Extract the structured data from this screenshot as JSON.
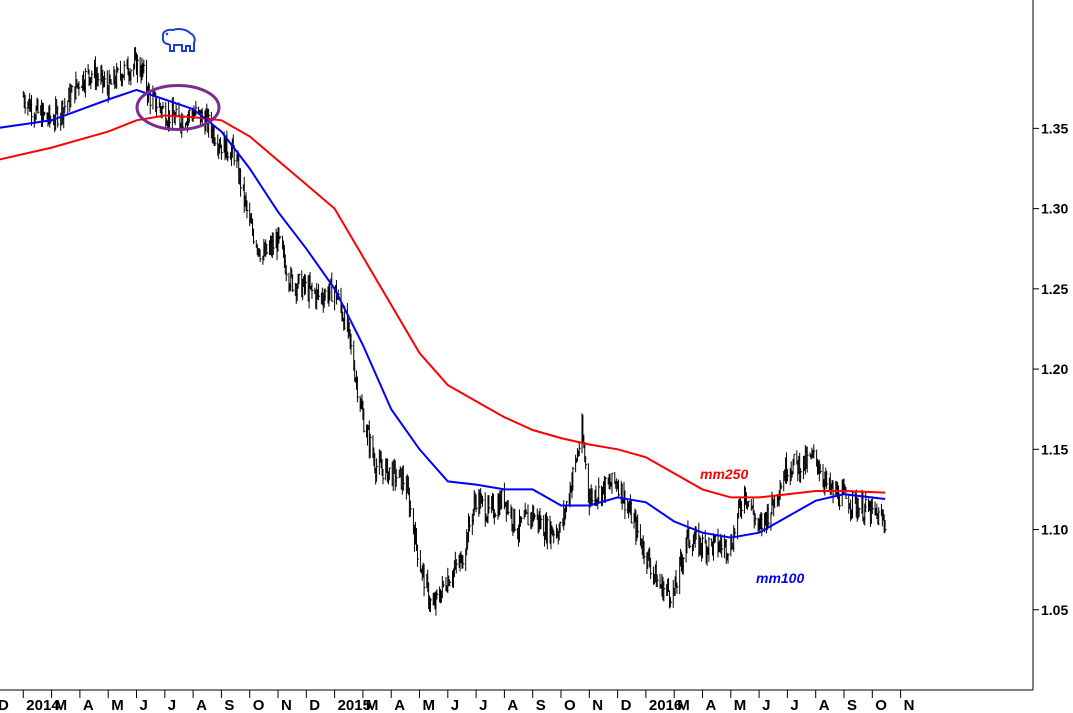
{
  "chart_data": {
    "type": "line",
    "title": "",
    "xlabel": "",
    "ylabel": "",
    "ylim": [
      1.0,
      1.43
    ],
    "y_ticks": [
      1.05,
      1.1,
      1.15,
      1.2,
      1.25,
      1.3,
      1.35
    ],
    "y_tick_labels": [
      "1.05",
      "1.10",
      "1.15",
      "1.20",
      "1.25",
      "1.30",
      "1.35"
    ],
    "x_range": [
      "2013-12-01",
      "2016-12-31"
    ],
    "x_tick_labels": [
      "D",
      "2014",
      "M",
      "A",
      "M",
      "J",
      "J",
      "A",
      "S",
      "O",
      "N",
      "D",
      "2015",
      "M",
      "A",
      "M",
      "J",
      "J",
      "A",
      "S",
      "O",
      "N",
      "D",
      "2016",
      "M",
      "A",
      "M",
      "J",
      "J",
      "A",
      "S",
      "O",
      "N"
    ],
    "price_series": {
      "name": "",
      "color": "#000000",
      "x": [
        "2014-01-01",
        "2014-01-15",
        "2014-02-01",
        "2014-02-15",
        "2014-03-01",
        "2014-03-15",
        "2014-04-01",
        "2014-04-15",
        "2014-05-01",
        "2014-05-08",
        "2014-05-15",
        "2014-06-01",
        "2014-06-15",
        "2014-07-01",
        "2014-07-15",
        "2014-08-01",
        "2014-08-15",
        "2014-09-01",
        "2014-09-15",
        "2014-10-01",
        "2014-10-15",
        "2014-11-01",
        "2014-11-15",
        "2014-12-01",
        "2014-12-15",
        "2015-01-01",
        "2015-01-15",
        "2015-02-01",
        "2015-02-15",
        "2015-03-01",
        "2015-03-15",
        "2015-04-01",
        "2015-04-15",
        "2015-05-01",
        "2015-05-15",
        "2015-06-01",
        "2015-06-15",
        "2015-07-01",
        "2015-07-15",
        "2015-08-01",
        "2015-08-24",
        "2015-09-01",
        "2015-09-15",
        "2015-10-01",
        "2015-10-15",
        "2015-11-01",
        "2015-11-15",
        "2015-12-01",
        "2015-12-15",
        "2016-01-01",
        "2016-01-15",
        "2016-02-01",
        "2016-02-15",
        "2016-03-01",
        "2016-03-15",
        "2016-04-01",
        "2016-04-15",
        "2016-05-01",
        "2016-05-15",
        "2016-06-01",
        "2016-06-15",
        "2016-07-01",
        "2016-07-15"
      ],
      "values": [
        1.37,
        1.36,
        1.355,
        1.365,
        1.38,
        1.385,
        1.375,
        1.385,
        1.39,
        1.385,
        1.37,
        1.36,
        1.355,
        1.36,
        1.355,
        1.34,
        1.335,
        1.29,
        1.27,
        1.28,
        1.255,
        1.25,
        1.245,
        1.25,
        1.225,
        1.17,
        1.14,
        1.135,
        1.13,
        1.08,
        1.05,
        1.07,
        1.08,
        1.12,
        1.11,
        1.12,
        1.1,
        1.11,
        1.1,
        1.1,
        1.16,
        1.12,
        1.125,
        1.13,
        1.11,
        1.085,
        1.065,
        1.06,
        1.095,
        1.09,
        1.09,
        1.09,
        1.125,
        1.1,
        1.115,
        1.14,
        1.14,
        1.145,
        1.125,
        1.12,
        1.115,
        1.11,
        1.105
      ]
    },
    "series": [
      {
        "name": "mm100",
        "color": "#0000ff",
        "x": [
          "2013-12-01",
          "2014-02-01",
          "2014-04-01",
          "2014-05-01",
          "2014-06-01",
          "2014-07-01",
          "2014-08-01",
          "2014-09-01",
          "2014-10-01",
          "2014-11-01",
          "2014-12-01",
          "2015-01-01",
          "2015-02-01",
          "2015-03-01",
          "2015-04-01",
          "2015-05-01",
          "2015-06-01",
          "2015-07-01",
          "2015-08-01",
          "2015-09-01",
          "2015-10-01",
          "2015-11-01",
          "2015-12-01",
          "2016-01-01",
          "2016-02-01",
          "2016-03-01",
          "2016-04-01",
          "2016-05-01",
          "2016-06-01",
          "2016-07-15"
        ],
        "values": [
          1.35,
          1.355,
          1.368,
          1.374,
          1.368,
          1.362,
          1.348,
          1.325,
          1.298,
          1.275,
          1.25,
          1.215,
          1.175,
          1.15,
          1.13,
          1.128,
          1.125,
          1.125,
          1.115,
          1.115,
          1.12,
          1.117,
          1.105,
          1.098,
          1.095,
          1.098,
          1.108,
          1.118,
          1.122,
          1.119
        ]
      },
      {
        "name": "mm250",
        "color": "#ff0000",
        "x": [
          "2013-12-01",
          "2014-02-01",
          "2014-04-01",
          "2014-05-01",
          "2014-06-01",
          "2014-07-01",
          "2014-08-01",
          "2014-09-01",
          "2014-10-01",
          "2014-11-01",
          "2014-12-01",
          "2015-01-01",
          "2015-02-01",
          "2015-03-01",
          "2015-04-01",
          "2015-05-01",
          "2015-06-01",
          "2015-07-01",
          "2015-08-01",
          "2015-09-01",
          "2015-10-01",
          "2015-11-01",
          "2015-12-01",
          "2016-01-01",
          "2016-02-01",
          "2016-03-01",
          "2016-04-01",
          "2016-05-01",
          "2016-06-01",
          "2016-07-15"
        ],
        "values": [
          1.33,
          1.338,
          1.348,
          1.355,
          1.358,
          1.357,
          1.355,
          1.345,
          1.33,
          1.315,
          1.3,
          1.27,
          1.24,
          1.21,
          1.19,
          1.18,
          1.17,
          1.162,
          1.157,
          1.153,
          1.15,
          1.145,
          1.135,
          1.125,
          1.12,
          1.12,
          1.122,
          1.124,
          1.124,
          1.123
        ]
      }
    ],
    "annotations": [
      {
        "type": "series-label",
        "text": "mm250",
        "color": "#ff0000"
      },
      {
        "type": "series-label",
        "text": "mm100",
        "color": "#0000ff"
      },
      {
        "type": "ellipse",
        "color": "#7b2d8e",
        "center_x": "2014-06-15",
        "center_y": 1.363
      },
      {
        "type": "icon",
        "name": "bear-icon",
        "color": "#1a3fd1"
      }
    ],
    "grid": false,
    "legend": "none"
  }
}
